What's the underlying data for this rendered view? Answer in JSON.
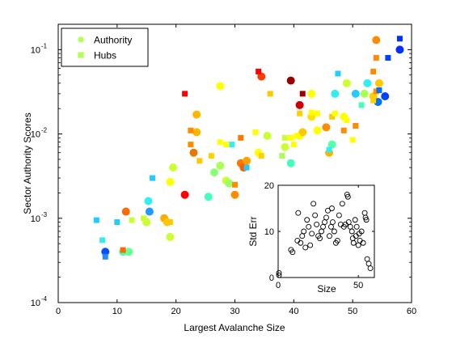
{
  "chart_data": [
    {
      "type": "scatter",
      "xlabel": "Largest Avalanche Size",
      "ylabel": "Sector Authority Scores",
      "xlim": [
        0,
        60
      ],
      "ylim": [
        0.0001,
        0.2
      ],
      "yscale": "log",
      "xticks": [
        "0",
        "10",
        "20",
        "30",
        "40",
        "50",
        "60"
      ],
      "yticks": [
        {
          "base": "10",
          "exp": "-4",
          "value": 0.0001
        },
        {
          "base": "10",
          "exp": "-3",
          "value": 0.001
        },
        {
          "base": "10",
          "exp": "-2",
          "value": 0.01
        },
        {
          "base": "10",
          "exp": "-1",
          "value": 0.1
        }
      ],
      "legend": {
        "position": "top-left",
        "entries": [
          {
            "label": "Authority",
            "marker": "circle",
            "color": "#b3ff4d"
          },
          {
            "label": "Hubs",
            "marker": "square",
            "color": "#b3ff4d"
          }
        ]
      },
      "series": [
        {
          "name": "Authority",
          "marker": "circle",
          "points": [
            {
              "x": 8,
              "y": 0.0004,
              "color": "#0050ff"
            },
            {
              "x": 11,
              "y": 0.0004,
              "color": "#55ffaa"
            },
            {
              "x": 12,
              "y": 0.0004,
              "color": "#66ff99"
            },
            {
              "x": 11.5,
              "y": 0.0012,
              "color": "#ff6a00"
            },
            {
              "x": 15,
              "y": 0.0009,
              "color": "#ccff33"
            },
            {
              "x": 15.5,
              "y": 0.0012,
              "color": "#2299ff"
            },
            {
              "x": 15.3,
              "y": 0.0016,
              "color": "#33eeee"
            },
            {
              "x": 18,
              "y": 0.001,
              "color": "#ffaa00"
            },
            {
              "x": 18.5,
              "y": 0.0009,
              "color": "#ffc800"
            },
            {
              "x": 19,
              "y": 0.0006,
              "color": "#ccff33"
            },
            {
              "x": 19,
              "y": 0.0027,
              "color": "#ffff00"
            },
            {
              "x": 19.5,
              "y": 0.004,
              "color": "#ccff33"
            },
            {
              "x": 21.5,
              "y": 0.0019,
              "color": "#ff0000"
            },
            {
              "x": 23,
              "y": 0.006,
              "color": "#e87800"
            },
            {
              "x": 23.5,
              "y": 0.0105,
              "color": "#ffb400"
            },
            {
              "x": 23.5,
              "y": 0.017,
              "color": "#ffb400"
            },
            {
              "x": 25.5,
              "y": 0.0018,
              "color": "#44ffbb"
            },
            {
              "x": 26.5,
              "y": 0.0035,
              "color": "#88ff77"
            },
            {
              "x": 27.5,
              "y": 0.0042,
              "color": "#aaff55"
            },
            {
              "x": 27.5,
              "y": 0.037,
              "color": "#ffff00"
            },
            {
              "x": 28.5,
              "y": 0.0028,
              "color": "#ccff33"
            },
            {
              "x": 29,
              "y": 0.0026,
              "color": "#99ff66"
            },
            {
              "x": 30,
              "y": 0.0019,
              "color": "#ff8c00"
            },
            {
              "x": 31,
              "y": 0.0045,
              "color": "#ff7700"
            },
            {
              "x": 31.5,
              "y": 0.004,
              "color": "#ff5a00"
            },
            {
              "x": 32,
              "y": 0.0048,
              "color": "#ffa000"
            },
            {
              "x": 34,
              "y": 0.006,
              "color": "#ffff00"
            },
            {
              "x": 34.5,
              "y": 0.048,
              "color": "#ff3c00"
            },
            {
              "x": 35.5,
              "y": 0.0095,
              "color": "#ccff33"
            },
            {
              "x": 38.5,
              "y": 0.007,
              "color": "#ccff33"
            },
            {
              "x": 39.5,
              "y": 0.0045,
              "color": "#44ffbb"
            },
            {
              "x": 39.5,
              "y": 0.043,
              "color": "#990000"
            },
            {
              "x": 41,
              "y": 0.0095,
              "color": "#ffff00"
            },
            {
              "x": 41,
              "y": 0.022,
              "color": "#cc0000"
            },
            {
              "x": 41.5,
              "y": 0.0105,
              "color": "#ffc800"
            },
            {
              "x": 43,
              "y": 0.03,
              "color": "#ffff00"
            },
            {
              "x": 43,
              "y": 0.016,
              "color": "#ffe000"
            },
            {
              "x": 44,
              "y": 0.011,
              "color": "#ffff00"
            },
            {
              "x": 45.5,
              "y": 0.012,
              "color": "#ff8c00"
            },
            {
              "x": 46,
              "y": 0.006,
              "color": "#ffb000"
            },
            {
              "x": 46.5,
              "y": 0.0075,
              "color": "#55ffaa"
            },
            {
              "x": 47,
              "y": 0.03,
              "color": "#33eeee"
            },
            {
              "x": 48.5,
              "y": 0.016,
              "color": "#ffff00"
            },
            {
              "x": 49,
              "y": 0.04,
              "color": "#ccff33"
            },
            {
              "x": 50.5,
              "y": 0.03,
              "color": "#22ccff"
            },
            {
              "x": 52,
              "y": 0.03,
              "color": "#aaff55"
            },
            {
              "x": 52.5,
              "y": 0.04,
              "color": "#33eeee"
            },
            {
              "x": 53.5,
              "y": 0.028,
              "color": "#ffd000"
            },
            {
              "x": 54,
              "y": 0.13,
              "color": "#ff8c00"
            },
            {
              "x": 54.3,
              "y": 0.024,
              "color": "#0070ff"
            },
            {
              "x": 54.5,
              "y": 0.04,
              "color": "#ffc800"
            },
            {
              "x": 55.5,
              "y": 0.028,
              "color": "#0040ff"
            },
            {
              "x": 58,
              "y": 0.1,
              "color": "#0030ff"
            }
          ]
        },
        {
          "name": "Hubs",
          "marker": "square",
          "points": [
            {
              "x": 6.5,
              "y": 0.00095,
              "color": "#22ccff"
            },
            {
              "x": 7.5,
              "y": 0.00055,
              "color": "#33eeee"
            },
            {
              "x": 8,
              "y": 0.00035,
              "color": "#2288ff"
            },
            {
              "x": 10,
              "y": 0.0009,
              "color": "#22ccff"
            },
            {
              "x": 11,
              "y": 0.00042,
              "color": "#ff6a00"
            },
            {
              "x": 12.5,
              "y": 0.00095,
              "color": "#ccff33"
            },
            {
              "x": 14.5,
              "y": 0.001,
              "color": "#ccff33"
            },
            {
              "x": 16,
              "y": 0.003,
              "color": "#22ccff"
            },
            {
              "x": 19,
              "y": 0.0009,
              "color": "#ffc800"
            },
            {
              "x": 21.5,
              "y": 0.03,
              "color": "#ff0000"
            },
            {
              "x": 22.5,
              "y": 0.0075,
              "color": "#ff8c00"
            },
            {
              "x": 22.5,
              "y": 0.011,
              "color": "#ff8c00"
            },
            {
              "x": 24,
              "y": 0.0048,
              "color": "#ffc800"
            },
            {
              "x": 26,
              "y": 0.0055,
              "color": "#ffd000"
            },
            {
              "x": 27.5,
              "y": 0.008,
              "color": "#ffff00"
            },
            {
              "x": 28.5,
              "y": 0.0075,
              "color": "#ffff00"
            },
            {
              "x": 29.5,
              "y": 0.0075,
              "color": "#33eeee"
            },
            {
              "x": 30,
              "y": 0.0025,
              "color": "#ff8c00"
            },
            {
              "x": 31,
              "y": 0.009,
              "color": "#ff7700"
            },
            {
              "x": 32,
              "y": 0.004,
              "color": "#22ccff"
            },
            {
              "x": 33.5,
              "y": 0.0105,
              "color": "#ffff00"
            },
            {
              "x": 34,
              "y": 0.055,
              "color": "#ff0000"
            },
            {
              "x": 34.5,
              "y": 0.0055,
              "color": "#ffd000"
            },
            {
              "x": 36,
              "y": 0.03,
              "color": "#ffc800"
            },
            {
              "x": 38,
              "y": 0.0055,
              "color": "#aaff55"
            },
            {
              "x": 38.5,
              "y": 0.009,
              "color": "#ccff33"
            },
            {
              "x": 39.5,
              "y": 0.009,
              "color": "#ffff00"
            },
            {
              "x": 40,
              "y": 0.0075,
              "color": "#ffff00"
            },
            {
              "x": 40.5,
              "y": 0.0095,
              "color": "#ffff00"
            },
            {
              "x": 41,
              "y": 0.0175,
              "color": "#ffd000"
            },
            {
              "x": 41.5,
              "y": 0.03,
              "color": "#990000"
            },
            {
              "x": 43,
              "y": 0.018,
              "color": "#ffff00"
            },
            {
              "x": 44,
              "y": 0.0175,
              "color": "#ffff00"
            },
            {
              "x": 46,
              "y": 0.0065,
              "color": "#33eeee"
            },
            {
              "x": 46.5,
              "y": 0.016,
              "color": "#ffc800"
            },
            {
              "x": 47,
              "y": 0.0175,
              "color": "#ffff00"
            },
            {
              "x": 47.5,
              "y": 0.052,
              "color": "#22ccff"
            },
            {
              "x": 48.5,
              "y": 0.011,
              "color": "#ff8c00"
            },
            {
              "x": 49,
              "y": 0.0145,
              "color": "#ffff00"
            },
            {
              "x": 50,
              "y": 0.0085,
              "color": "#ffff00"
            },
            {
              "x": 50.5,
              "y": 0.0125,
              "color": "#ff8c00"
            },
            {
              "x": 51.5,
              "y": 0.022,
              "color": "#44ffbb"
            },
            {
              "x": 53.5,
              "y": 0.025,
              "color": "#ffd000"
            },
            {
              "x": 53.5,
              "y": 0.055,
              "color": "#ff8c00"
            },
            {
              "x": 54,
              "y": 0.08,
              "color": "#ff8c00"
            },
            {
              "x": 54,
              "y": 0.032,
              "color": "#ff8c00"
            },
            {
              "x": 54.5,
              "y": 0.033,
              "color": "#0070ff"
            },
            {
              "x": 56,
              "y": 0.08,
              "color": "#0040ff"
            },
            {
              "x": 58,
              "y": 0.135,
              "color": "#0030ff"
            }
          ]
        }
      ]
    },
    {
      "type": "scatter",
      "inset": true,
      "xlabel": "Size",
      "ylabel": "Std Err",
      "xlim": [
        0,
        60
      ],
      "ylim": [
        0,
        20
      ],
      "xticks": [
        "0",
        "50"
      ],
      "yticks": [
        "0",
        "10",
        "20"
      ],
      "series": [
        {
          "marker": "open-circle",
          "points": [
            {
              "x": 0.5,
              "y": 1
            },
            {
              "x": 0.5,
              "y": 0.5
            },
            {
              "x": 8,
              "y": 6
            },
            {
              "x": 9,
              "y": 5.5
            },
            {
              "x": 12,
              "y": 8
            },
            {
              "x": 12.5,
              "y": 14
            },
            {
              "x": 14,
              "y": 7.5
            },
            {
              "x": 15,
              "y": 9
            },
            {
              "x": 16,
              "y": 10
            },
            {
              "x": 17,
              "y": 6.5
            },
            {
              "x": 18,
              "y": 12.5
            },
            {
              "x": 19,
              "y": 11
            },
            {
              "x": 20,
              "y": 7
            },
            {
              "x": 21,
              "y": 9.5
            },
            {
              "x": 22,
              "y": 16
            },
            {
              "x": 23,
              "y": 13.5
            },
            {
              "x": 24,
              "y": 11.5
            },
            {
              "x": 25,
              "y": 9
            },
            {
              "x": 26,
              "y": 8.5
            },
            {
              "x": 27,
              "y": 10
            },
            {
              "x": 28,
              "y": 11
            },
            {
              "x": 29,
              "y": 12
            },
            {
              "x": 30,
              "y": 13
            },
            {
              "x": 31,
              "y": 14.5
            },
            {
              "x": 32,
              "y": 9
            },
            {
              "x": 33,
              "y": 11
            },
            {
              "x": 33.5,
              "y": 15
            },
            {
              "x": 34,
              "y": 12
            },
            {
              "x": 35,
              "y": 10
            },
            {
              "x": 36,
              "y": 7.5
            },
            {
              "x": 37,
              "y": 8
            },
            {
              "x": 38,
              "y": 13.5
            },
            {
              "x": 39,
              "y": 11.5
            },
            {
              "x": 40,
              "y": 16
            },
            {
              "x": 41,
              "y": 11
            },
            {
              "x": 42,
              "y": 11.5
            },
            {
              "x": 43,
              "y": 18
            },
            {
              "x": 43.5,
              "y": 17.5
            },
            {
              "x": 44,
              "y": 12
            },
            {
              "x": 45,
              "y": 11
            },
            {
              "x": 46,
              "y": 10
            },
            {
              "x": 46.5,
              "y": 8.5
            },
            {
              "x": 47,
              "y": 7.5
            },
            {
              "x": 48,
              "y": 12.5
            },
            {
              "x": 48.5,
              "y": 9
            },
            {
              "x": 49,
              "y": 11
            },
            {
              "x": 50,
              "y": 7
            },
            {
              "x": 50.5,
              "y": 9.5
            },
            {
              "x": 51,
              "y": 8
            },
            {
              "x": 52,
              "y": 10
            },
            {
              "x": 53,
              "y": 7.5
            },
            {
              "x": 54,
              "y": 14
            },
            {
              "x": 54.5,
              "y": 13
            },
            {
              "x": 55,
              "y": 12.5
            },
            {
              "x": 55.5,
              "y": 4
            },
            {
              "x": 56.5,
              "y": 3
            },
            {
              "x": 57.5,
              "y": 2
            }
          ]
        }
      ]
    }
  ]
}
